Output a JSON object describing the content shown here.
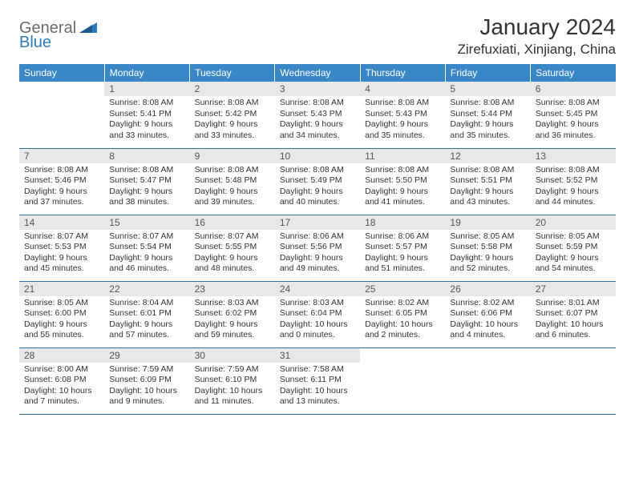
{
  "logo": {
    "text1": "General",
    "text2": "Blue"
  },
  "title": "January 2024",
  "location": "Zirefuxiati, Xinjiang, China",
  "colors": {
    "header_bg": "#3a87c7",
    "header_fg": "#ffffff",
    "daynum_bg": "#e8e8e8",
    "row_border": "#2e6fa8",
    "logo_gray": "#6b6b6b",
    "logo_blue": "#2e7bc0"
  },
  "weekdays": [
    "Sunday",
    "Monday",
    "Tuesday",
    "Wednesday",
    "Thursday",
    "Friday",
    "Saturday"
  ],
  "weeks": [
    [
      {
        "n": "",
        "s": "",
        "ss": "",
        "d": ""
      },
      {
        "n": "1",
        "s": "Sunrise: 8:08 AM",
        "ss": "Sunset: 5:41 PM",
        "d": "Daylight: 9 hours and 33 minutes."
      },
      {
        "n": "2",
        "s": "Sunrise: 8:08 AM",
        "ss": "Sunset: 5:42 PM",
        "d": "Daylight: 9 hours and 33 minutes."
      },
      {
        "n": "3",
        "s": "Sunrise: 8:08 AM",
        "ss": "Sunset: 5:43 PM",
        "d": "Daylight: 9 hours and 34 minutes."
      },
      {
        "n": "4",
        "s": "Sunrise: 8:08 AM",
        "ss": "Sunset: 5:43 PM",
        "d": "Daylight: 9 hours and 35 minutes."
      },
      {
        "n": "5",
        "s": "Sunrise: 8:08 AM",
        "ss": "Sunset: 5:44 PM",
        "d": "Daylight: 9 hours and 35 minutes."
      },
      {
        "n": "6",
        "s": "Sunrise: 8:08 AM",
        "ss": "Sunset: 5:45 PM",
        "d": "Daylight: 9 hours and 36 minutes."
      }
    ],
    [
      {
        "n": "7",
        "s": "Sunrise: 8:08 AM",
        "ss": "Sunset: 5:46 PM",
        "d": "Daylight: 9 hours and 37 minutes."
      },
      {
        "n": "8",
        "s": "Sunrise: 8:08 AM",
        "ss": "Sunset: 5:47 PM",
        "d": "Daylight: 9 hours and 38 minutes."
      },
      {
        "n": "9",
        "s": "Sunrise: 8:08 AM",
        "ss": "Sunset: 5:48 PM",
        "d": "Daylight: 9 hours and 39 minutes."
      },
      {
        "n": "10",
        "s": "Sunrise: 8:08 AM",
        "ss": "Sunset: 5:49 PM",
        "d": "Daylight: 9 hours and 40 minutes."
      },
      {
        "n": "11",
        "s": "Sunrise: 8:08 AM",
        "ss": "Sunset: 5:50 PM",
        "d": "Daylight: 9 hours and 41 minutes."
      },
      {
        "n": "12",
        "s": "Sunrise: 8:08 AM",
        "ss": "Sunset: 5:51 PM",
        "d": "Daylight: 9 hours and 43 minutes."
      },
      {
        "n": "13",
        "s": "Sunrise: 8:08 AM",
        "ss": "Sunset: 5:52 PM",
        "d": "Daylight: 9 hours and 44 minutes."
      }
    ],
    [
      {
        "n": "14",
        "s": "Sunrise: 8:07 AM",
        "ss": "Sunset: 5:53 PM",
        "d": "Daylight: 9 hours and 45 minutes."
      },
      {
        "n": "15",
        "s": "Sunrise: 8:07 AM",
        "ss": "Sunset: 5:54 PM",
        "d": "Daylight: 9 hours and 46 minutes."
      },
      {
        "n": "16",
        "s": "Sunrise: 8:07 AM",
        "ss": "Sunset: 5:55 PM",
        "d": "Daylight: 9 hours and 48 minutes."
      },
      {
        "n": "17",
        "s": "Sunrise: 8:06 AM",
        "ss": "Sunset: 5:56 PM",
        "d": "Daylight: 9 hours and 49 minutes."
      },
      {
        "n": "18",
        "s": "Sunrise: 8:06 AM",
        "ss": "Sunset: 5:57 PM",
        "d": "Daylight: 9 hours and 51 minutes."
      },
      {
        "n": "19",
        "s": "Sunrise: 8:05 AM",
        "ss": "Sunset: 5:58 PM",
        "d": "Daylight: 9 hours and 52 minutes."
      },
      {
        "n": "20",
        "s": "Sunrise: 8:05 AM",
        "ss": "Sunset: 5:59 PM",
        "d": "Daylight: 9 hours and 54 minutes."
      }
    ],
    [
      {
        "n": "21",
        "s": "Sunrise: 8:05 AM",
        "ss": "Sunset: 6:00 PM",
        "d": "Daylight: 9 hours and 55 minutes."
      },
      {
        "n": "22",
        "s": "Sunrise: 8:04 AM",
        "ss": "Sunset: 6:01 PM",
        "d": "Daylight: 9 hours and 57 minutes."
      },
      {
        "n": "23",
        "s": "Sunrise: 8:03 AM",
        "ss": "Sunset: 6:02 PM",
        "d": "Daylight: 9 hours and 59 minutes."
      },
      {
        "n": "24",
        "s": "Sunrise: 8:03 AM",
        "ss": "Sunset: 6:04 PM",
        "d": "Daylight: 10 hours and 0 minutes."
      },
      {
        "n": "25",
        "s": "Sunrise: 8:02 AM",
        "ss": "Sunset: 6:05 PM",
        "d": "Daylight: 10 hours and 2 minutes."
      },
      {
        "n": "26",
        "s": "Sunrise: 8:02 AM",
        "ss": "Sunset: 6:06 PM",
        "d": "Daylight: 10 hours and 4 minutes."
      },
      {
        "n": "27",
        "s": "Sunrise: 8:01 AM",
        "ss": "Sunset: 6:07 PM",
        "d": "Daylight: 10 hours and 6 minutes."
      }
    ],
    [
      {
        "n": "28",
        "s": "Sunrise: 8:00 AM",
        "ss": "Sunset: 6:08 PM",
        "d": "Daylight: 10 hours and 7 minutes."
      },
      {
        "n": "29",
        "s": "Sunrise: 7:59 AM",
        "ss": "Sunset: 6:09 PM",
        "d": "Daylight: 10 hours and 9 minutes."
      },
      {
        "n": "30",
        "s": "Sunrise: 7:59 AM",
        "ss": "Sunset: 6:10 PM",
        "d": "Daylight: 10 hours and 11 minutes."
      },
      {
        "n": "31",
        "s": "Sunrise: 7:58 AM",
        "ss": "Sunset: 6:11 PM",
        "d": "Daylight: 10 hours and 13 minutes."
      },
      {
        "n": "",
        "s": "",
        "ss": "",
        "d": ""
      },
      {
        "n": "",
        "s": "",
        "ss": "",
        "d": ""
      },
      {
        "n": "",
        "s": "",
        "ss": "",
        "d": ""
      }
    ]
  ]
}
